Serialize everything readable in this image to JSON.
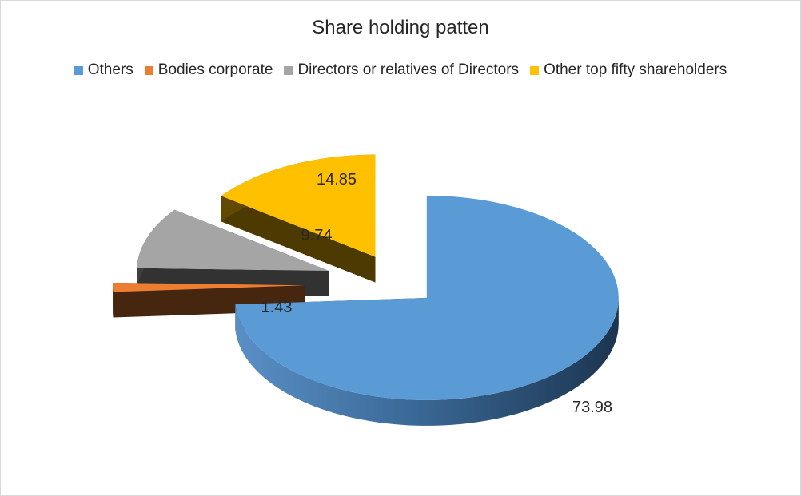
{
  "chart_data": {
    "type": "pie",
    "title": "Share holding patten",
    "legend_position": "top",
    "slices": [
      {
        "name": "Others",
        "value": 73.98,
        "label": "73.98",
        "color": "#5B9BD5"
      },
      {
        "name": "Bodies corporate",
        "value": 1.43,
        "label": "1.43",
        "color": "#ED7D31"
      },
      {
        "name": "Directors or relatives of Directors",
        "value": 9.74,
        "label": "9.74",
        "color": "#A5A5A5"
      },
      {
        "name": "Other top fifty shareholders",
        "value": 14.85,
        "label": "14.85",
        "color": "#FFC000"
      }
    ]
  }
}
